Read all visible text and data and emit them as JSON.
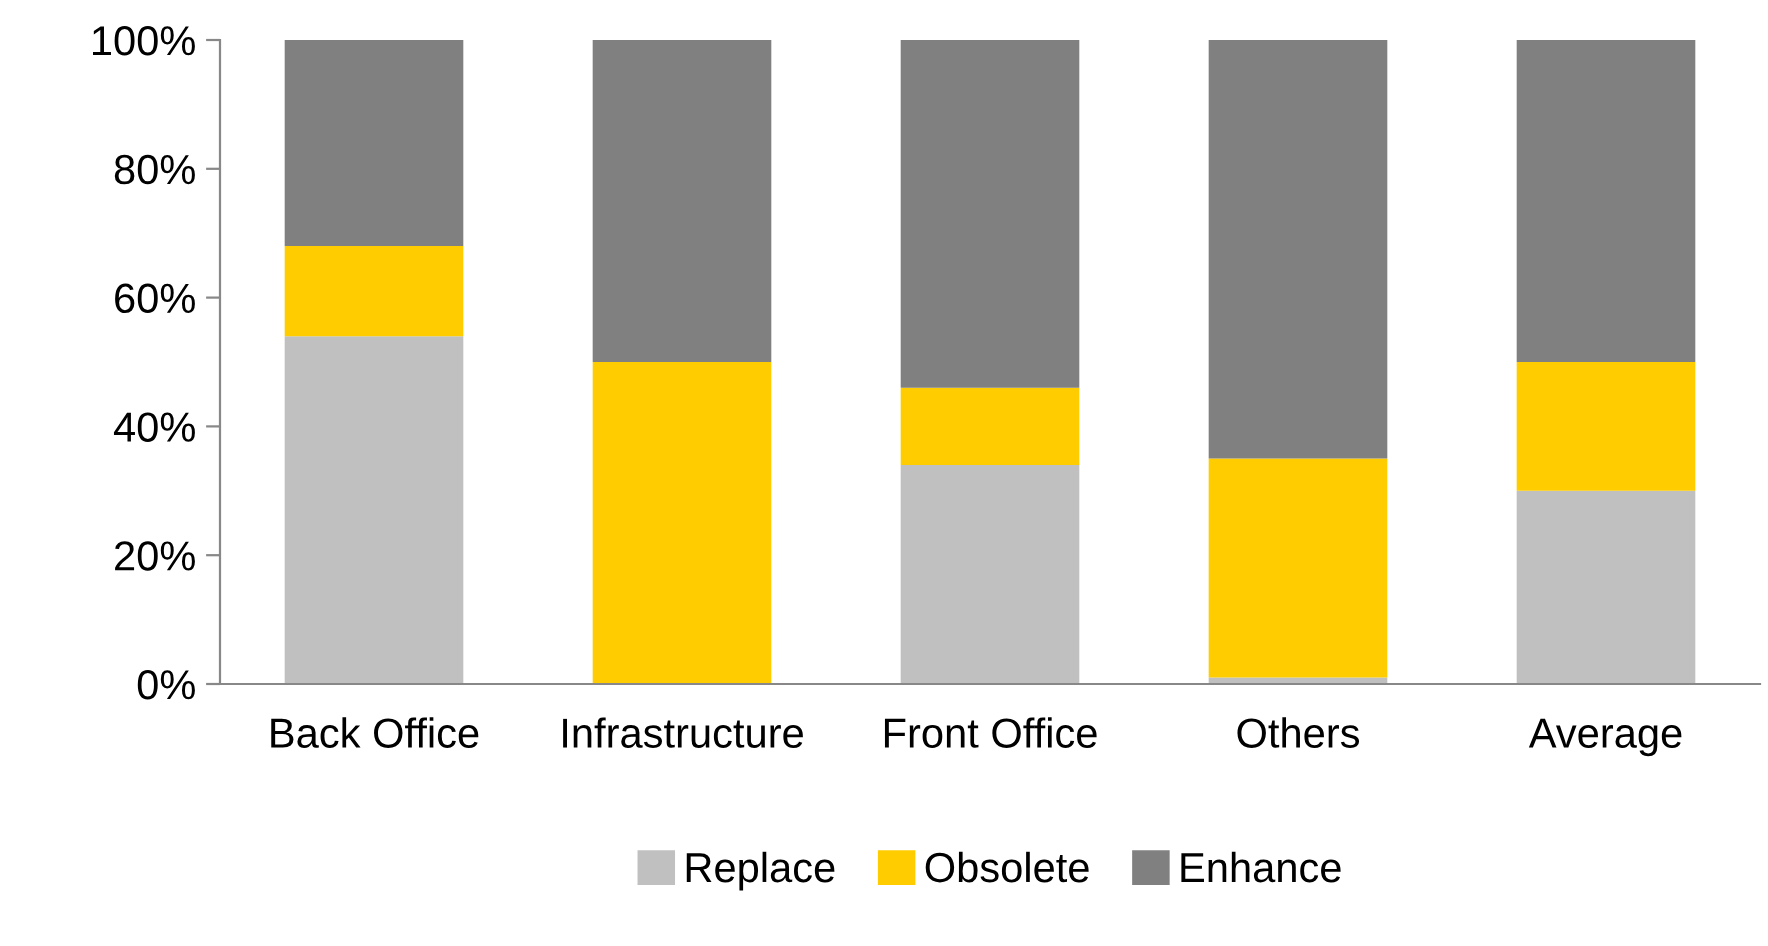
{
  "chart_data": {
    "type": "bar",
    "stacked": true,
    "categories": [
      "Back Office",
      "Infrastructure",
      "Front Office",
      "Others",
      "Average"
    ],
    "series": [
      {
        "name": "Replace",
        "color": "#c0c0c0",
        "values": [
          54,
          0,
          34,
          1,
          30
        ]
      },
      {
        "name": "Obsolete",
        "color": "#ffcc00",
        "values": [
          14,
          50,
          12,
          34,
          20
        ]
      },
      {
        "name": "Enhance",
        "color": "#808080",
        "values": [
          32,
          50,
          54,
          65,
          50
        ]
      }
    ],
    "ylim": [
      0,
      100
    ],
    "yticks": [
      {
        "value": 0,
        "label": "0%"
      },
      {
        "value": 20,
        "label": "20%"
      },
      {
        "value": 40,
        "label": "40%"
      },
      {
        "value": 60,
        "label": "60%"
      },
      {
        "value": 80,
        "label": "80%"
      },
      {
        "value": 100,
        "label": "100%"
      }
    ],
    "grid": false,
    "legend": "bottom"
  }
}
